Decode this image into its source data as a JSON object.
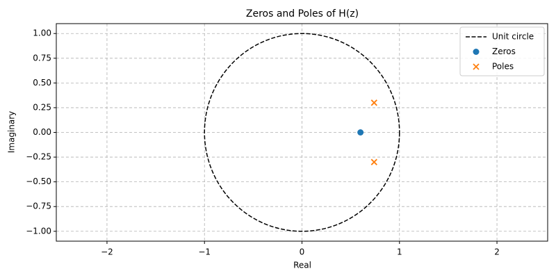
{
  "chart_data": {
    "type": "scatter",
    "title": "Zeros and Poles of H(z)",
    "xlabel": "Real",
    "ylabel": "Imaginary",
    "xlim": [
      -2.52,
      2.52
    ],
    "ylim": [
      -1.1,
      1.1
    ],
    "xticks": [
      {
        "value": -2,
        "label": "−2"
      },
      {
        "value": -1,
        "label": "−1"
      },
      0,
      1,
      2
    ],
    "yticks": [
      {
        "value": -1,
        "label": "−1.00"
      },
      {
        "value": -0.75,
        "label": "−0.75"
      },
      {
        "value": -0.5,
        "label": "−0.50"
      },
      {
        "value": -0.25,
        "label": "−0.25"
      },
      {
        "value": 0,
        "label": "0.00"
      },
      {
        "value": 0.25,
        "label": "0.25"
      },
      {
        "value": 0.5,
        "label": "0.50"
      },
      {
        "value": 0.75,
        "label": "0.75"
      },
      {
        "value": 1,
        "label": "1.00"
      }
    ],
    "grid": true,
    "legend": "upper right",
    "series": [
      {
        "name": "Unit circle",
        "marker": "dashed-line",
        "color": "#000000",
        "center": [
          0,
          0
        ],
        "radius": 1
      },
      {
        "name": "Zeros",
        "marker": "o",
        "color": "#1f77b4",
        "x": [
          0.6
        ],
        "y": [
          0
        ]
      },
      {
        "name": "Poles",
        "marker": "x",
        "color": "#ff7f0e",
        "x": [
          0.74,
          0.74
        ],
        "y": [
          0.3,
          -0.3
        ]
      }
    ]
  }
}
